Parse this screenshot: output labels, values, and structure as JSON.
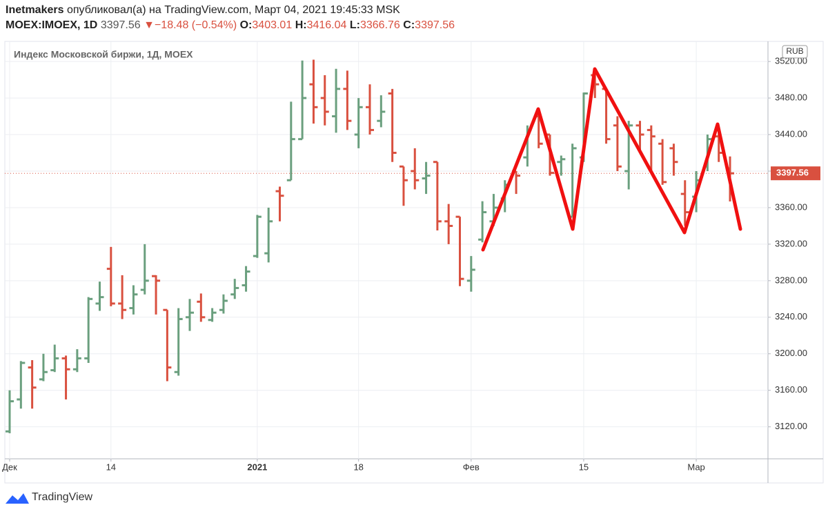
{
  "header": {
    "author": "Inetmakers",
    "published": "опубликовал(а) на TradingView.com, Март 04, 2021 19:45:33 MSK",
    "symbol": "MOEX:IMOEX, 1D",
    "arrow": "▼",
    "change": "−18.48 (−0.54%)",
    "o_label": "O:",
    "h_label": "H:",
    "l_label": "L:",
    "c_label": "C:"
  },
  "chart_data": {
    "type": "ohlc",
    "title": "Индекс Московской биржи, 1Д, MOEX",
    "currency": "RUB",
    "categories": [
      "Дек",
      null,
      null,
      null,
      null,
      null,
      null,
      null,
      null,
      "14",
      null,
      null,
      null,
      null,
      null,
      null,
      null,
      null,
      null,
      null,
      null,
      null,
      "2021",
      null,
      null,
      null,
      null,
      null,
      null,
      null,
      null,
      "18",
      null,
      null,
      null,
      null,
      null,
      null,
      null,
      null,
      null,
      "Фев",
      null,
      null,
      null,
      null,
      null,
      null,
      null,
      null,
      null,
      "15",
      null,
      null,
      null,
      null,
      null,
      null,
      null,
      null,
      null,
      "Мар",
      null,
      null,
      null
    ],
    "open": [
      3115,
      3150,
      3185,
      3172,
      3182,
      3195,
      3183,
      3195,
      3255,
      3293,
      3255,
      3250,
      3270,
      3285,
      3248,
      3180,
      3240,
      3257,
      3237,
      3248,
      3265,
      3275,
      3307,
      3310,
      3378,
      3390,
      3435,
      3495,
      3480,
      3460,
      3490,
      3440,
      3470,
      3455,
      3485,
      3405,
      3400,
      3392,
      3410,
      3345,
      3350,
      3280,
      3325,
      3345,
      3370,
      3400,
      3415,
      3460,
      3440,
      3410,
      3350,
      3415,
      3505,
      3490,
      3450,
      3400,
      3450,
      3445,
      3430,
      3425,
      3375,
      3372,
      3405,
      3438,
      3403.01
    ],
    "high": [
      3160,
      3192,
      3193,
      3200,
      3210,
      3198,
      3205,
      3262,
      3279,
      3317,
      3286,
      3275,
      3320,
      3286,
      3248,
      3250,
      3260,
      3266,
      3250,
      3265,
      3282,
      3296,
      3352,
      3360,
      3383,
      3476,
      3521,
      3522,
      3505,
      3512,
      3510,
      3480,
      3495,
      3483,
      3490,
      3405,
      3425,
      3410,
      3410,
      3364,
      3350,
      3307,
      3367,
      3375,
      3390,
      3400,
      3450,
      3467,
      3440,
      3417,
      3430,
      3486,
      3510,
      3490,
      3460,
      3455,
      3455,
      3450,
      3435,
      3430,
      3390,
      3400,
      3440,
      3445,
      3416.04
    ],
    "low": [
      3113,
      3140,
      3140,
      3170,
      3180,
      3150,
      3180,
      3190,
      3247,
      3252,
      3238,
      3243,
      3265,
      3243,
      3170,
      3176,
      3225,
      3235,
      3235,
      3244,
      3260,
      3268,
      3305,
      3300,
      3345,
      3390,
      3435,
      3452,
      3450,
      3442,
      3445,
      3425,
      3440,
      3448,
      3410,
      3362,
      3380,
      3375,
      3335,
      3320,
      3274,
      3268,
      3322,
      3340,
      3355,
      3375,
      3405,
      3425,
      3395,
      3395,
      3350,
      3410,
      3480,
      3430,
      3400,
      3380,
      3420,
      3400,
      3385,
      3395,
      3340,
      3355,
      3400,
      3410,
      3366.76
    ],
    "close": [
      3148,
      3190,
      3163,
      3180,
      3195,
      3183,
      3195,
      3260,
      3262,
      3255,
      3248,
      3265,
      3280,
      3280,
      3185,
      3238,
      3245,
      3240,
      3245,
      3258,
      3272,
      3290,
      3350,
      3345,
      3373,
      3435,
      3480,
      3470,
      3465,
      3490,
      3455,
      3470,
      3445,
      3465,
      3420,
      3390,
      3390,
      3395,
      3345,
      3340,
      3282,
      3292,
      3355,
      3360,
      3385,
      3395,
      3445,
      3430,
      3398,
      3413,
      3425,
      3485,
      3495,
      3435,
      3405,
      3450,
      3440,
      3438,
      3388,
      3410,
      3355,
      3390,
      3435,
      3420,
      3397.56
    ],
    "up_color": "#6a9f7e",
    "down_color": "#d9503f",
    "ylim": [
      3085,
      3542
    ],
    "yticks": [
      {
        "value": 3120,
        "label": "3120.00"
      },
      {
        "value": 3160,
        "label": "3160.00"
      },
      {
        "value": 3200,
        "label": "3200.00"
      },
      {
        "value": 3240,
        "label": "3240.00"
      },
      {
        "value": 3280,
        "label": "3280.00"
      },
      {
        "value": 3320,
        "label": "3320.00"
      },
      {
        "value": 3360,
        "label": "3360.00"
      },
      {
        "value": 3400,
        "label": "3400.00"
      },
      {
        "value": 3440,
        "label": "3440.00"
      },
      {
        "value": 3480,
        "label": "3480.00"
      },
      {
        "value": 3520,
        "label": "3520.00"
      }
    ],
    "grid": true
  },
  "footer": {
    "brand": "TradingView"
  }
}
